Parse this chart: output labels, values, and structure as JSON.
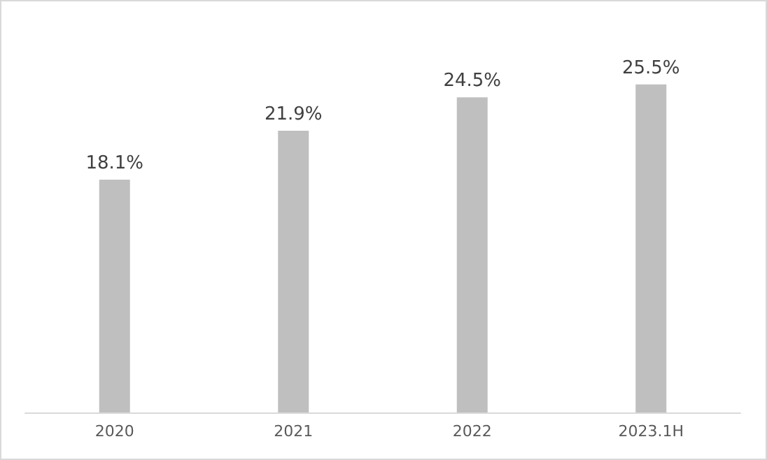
{
  "chart_data": {
    "type": "bar",
    "categories": [
      "2020",
      "2021",
      "2022",
      "2023.1H"
    ],
    "values": [
      18.1,
      21.9,
      24.5,
      25.5
    ],
    "value_labels": [
      "18.1%",
      "21.9%",
      "24.5%",
      "25.5%"
    ],
    "color": "#bfbfbf",
    "tick_labels": "x"
  }
}
